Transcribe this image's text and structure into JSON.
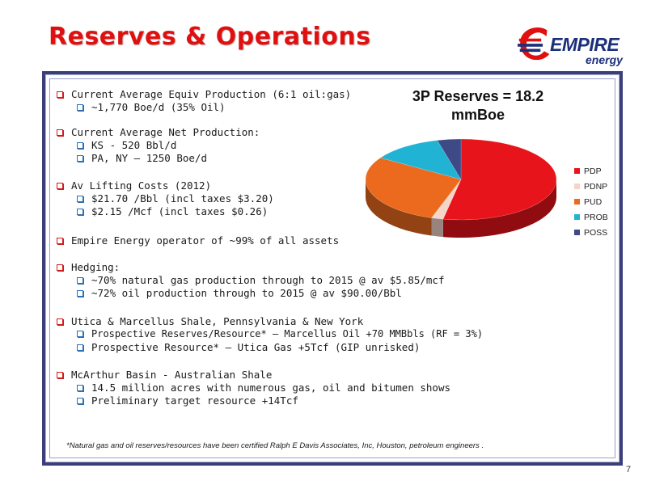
{
  "slide": {
    "title": "Reserves & Operations",
    "page_number": "7",
    "footnote": "*Natural gas and oil reserves/resources have been certified Ralph E Davis Associates, Inc, Houston, petroleum engineers ."
  },
  "logo": {
    "word1": "EMPIRE",
    "word2": "energy"
  },
  "bullets": [
    {
      "text": "Current Average Equiv Production (6:1 oil:gas)",
      "sub": [
        "~1,770 Boe/d (35% Oil)"
      ]
    },
    {
      "text": "Current Average Net Production:",
      "sub": [
        "KS - 520 Bbl/d",
        "PA, NY – 1250 Boe/d"
      ]
    },
    {
      "text": "Av Lifting Costs (2012)",
      "sub": [
        "$21.70 /Bbl (incl taxes $3.20)",
        "$2.15 /Mcf (incl taxes $0.26)"
      ]
    },
    {
      "text": "Empire Energy operator of ~99% of all assets",
      "sub": []
    },
    {
      "text": "Hedging:",
      "sub": [
        "~70% natural gas production through to 2015 @ av $5.85/mcf",
        "~72% oil production through to 2015 @ av $90.00/Bbl"
      ]
    },
    {
      "text": "Utica & Marcellus Shale, Pennsylvania & New York",
      "sub": [
        "Prospective Reserves/Resource* – Marcellus Oil +70 MMBbls (RF = 3%)",
        "Prospective Resource* – Utica Gas +5Tcf (GIP unrisked)"
      ]
    },
    {
      "text": "McArthur Basin - Australian Shale",
      "sub": [
        "14.5 million acres with numerous gas, oil and bitumen shows",
        "Preliminary target resource +14Tcf"
      ]
    }
  ],
  "chart_data": {
    "type": "pie",
    "title": "3P Reserves = 18.2 mmBoe",
    "legend_position": "right",
    "categories": [
      "PDP",
      "PDNP",
      "PUD",
      "PROB",
      "POSS"
    ],
    "values": [
      53,
      2,
      29,
      12,
      4
    ],
    "colors": [
      "#e8141b",
      "#f5d5c8",
      "#ec6a1e",
      "#21b3d3",
      "#3e4a86"
    ]
  }
}
